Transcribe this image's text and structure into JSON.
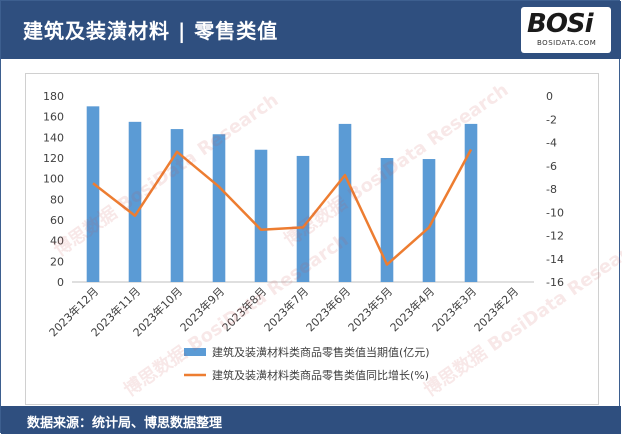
{
  "header": {
    "title": "建筑及装潢材料 | 零售类值"
  },
  "logo": {
    "main": "BOSi",
    "sub": "BOSIDATA.COM"
  },
  "footer": {
    "source": "数据来源：统计局、博思数据整理"
  },
  "watermark": {
    "text": "博思数据 BosiData Research"
  },
  "colors": {
    "bar": "#5b9bd5",
    "line": "#ed7d31",
    "header": "#2f4f7f"
  },
  "chart_data": {
    "type": "bar",
    "categories": [
      "2023年12月",
      "2023年11月",
      "2023年10月",
      "2023年9月",
      "2023年8月",
      "2023年7月",
      "2023年6月",
      "2023年5月",
      "2023年4月",
      "2023年3月",
      "2023年2月"
    ],
    "series": [
      {
        "name": "建筑及装潢材料类商品零售类值当期值(亿元)",
        "type": "bar",
        "axis": "left",
        "values": [
          170,
          155,
          148,
          143,
          128,
          122,
          153,
          120,
          119,
          153,
          null
        ]
      },
      {
        "name": "建筑及装潢材料类商品零售类值同比增长(%)",
        "type": "line",
        "axis": "right",
        "values": [
          -7.5,
          -10.3,
          -4.8,
          -7.8,
          -11.5,
          -11.3,
          -6.8,
          -14.5,
          -11.3,
          -4.6,
          null
        ]
      }
    ],
    "y_left": {
      "ticks": [
        "0",
        "20",
        "40",
        "60",
        "80",
        "100",
        "120",
        "140",
        "160",
        "180"
      ],
      "min": 0,
      "max": 180
    },
    "y_right": {
      "ticks": [
        "0",
        "-2",
        "-4",
        "-6",
        "-8",
        "-10",
        "-12",
        "-14",
        "-16"
      ],
      "min": -16,
      "max": 0
    },
    "legend_position": "bottom",
    "grid": false
  }
}
